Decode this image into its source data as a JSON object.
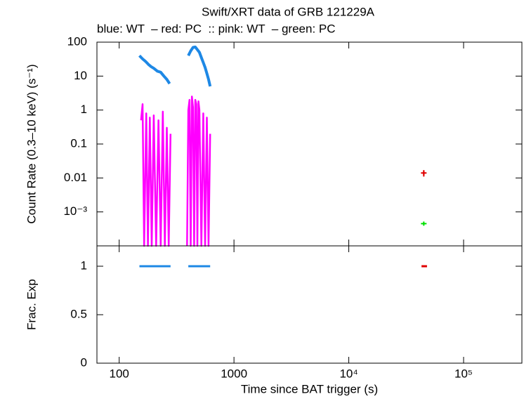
{
  "chart_data": [
    {
      "type": "line",
      "title": "Swift/XRT data of GRB 121229A",
      "subtitle": "blue: WT  – red: PC  :: pink: WT  – green: PC",
      "ylabel": "Count Rate (0.3–10 keV) (s⁻¹)",
      "log_x": true,
      "log_y": true,
      "xlim": [
        64,
        322000
      ],
      "xticks": [
        100,
        1000,
        {
          "value": 10000,
          "label": "10⁴"
        },
        {
          "value": 100000,
          "label": "10⁵"
        }
      ],
      "ylim": [
        0.0001,
        100
      ],
      "yticks": [
        100,
        10,
        1,
        0.1,
        0.01,
        {
          "value": 0.001,
          "label": "10⁻³"
        }
      ],
      "series": [
        {
          "color": "#1e88e5",
          "mode": "line",
          "width": 4,
          "x": [
            150,
            160,
            170,
            180,
            190,
            200,
            215,
            230,
            245,
            260,
            275,
            330,
            400,
            420,
            440,
            460,
            480,
            500,
            520,
            540,
            560,
            580,
            600,
            620
          ],
          "values": [
            40,
            32,
            27,
            22,
            19,
            17,
            14,
            13,
            10,
            8,
            6,
            null,
            40,
            55,
            70,
            72,
            60,
            50,
            35,
            25,
            18,
            12,
            8,
            5
          ]
        },
        {
          "color": "#ff00ff",
          "mode": "line",
          "width": 2.5,
          "x": [
            155,
            160,
            165,
            172,
            178,
            185,
            192,
            200,
            210,
            220,
            230,
            240,
            250,
            260,
            270,
            280,
            330,
            390,
            400,
            410,
            420,
            430,
            440,
            450,
            460,
            470,
            480,
            490,
            500,
            520,
            540,
            560,
            580,
            600,
            620
          ],
          "values": [
            0.5,
            1.5,
            0.0001,
            0.8,
            0.0001,
            0.6,
            0.0001,
            0.7,
            0.0001,
            0.5,
            0.0001,
            0.9,
            0.0001,
            0.3,
            0.0001,
            0.2,
            null,
            0.0001,
            1,
            2,
            0.0001,
            2.5,
            1.2,
            0.0001,
            2,
            1.5,
            0.0001,
            1.8,
            1,
            0.0001,
            0.8,
            0.0001,
            0.6,
            0.0001,
            0.2
          ]
        },
        {
          "color": "#e00000",
          "mode": "points",
          "x": [
            45000
          ],
          "values": [
            0.014
          ],
          "errors": [
            0.003
          ]
        },
        {
          "color": "#00e000",
          "mode": "points",
          "x": [
            45000
          ],
          "values": [
            0.00045
          ]
        }
      ]
    },
    {
      "type": "line",
      "xlabel": "Time since BAT trigger (s)",
      "ylabel": "Frac. Exp",
      "log_x": true,
      "xlim": [
        64,
        322000
      ],
      "xticks": [
        100,
        1000,
        {
          "value": 10000,
          "label": "10⁴"
        },
        {
          "value": 100000,
          "label": "10⁵"
        }
      ],
      "ylim": [
        0,
        1.21
      ],
      "yticks": [
        0,
        0.5,
        1
      ],
      "series": [
        {
          "color": "#1e88e5",
          "mode": "line",
          "width": 3,
          "x": [
            150,
            280,
            340,
            400,
            620
          ],
          "values": [
            1,
            1,
            null,
            1,
            1
          ]
        },
        {
          "color": "#e00000",
          "mode": "line",
          "width": 3,
          "x": [
            43000,
            48000
          ],
          "values": [
            1,
            1
          ]
        }
      ]
    }
  ]
}
